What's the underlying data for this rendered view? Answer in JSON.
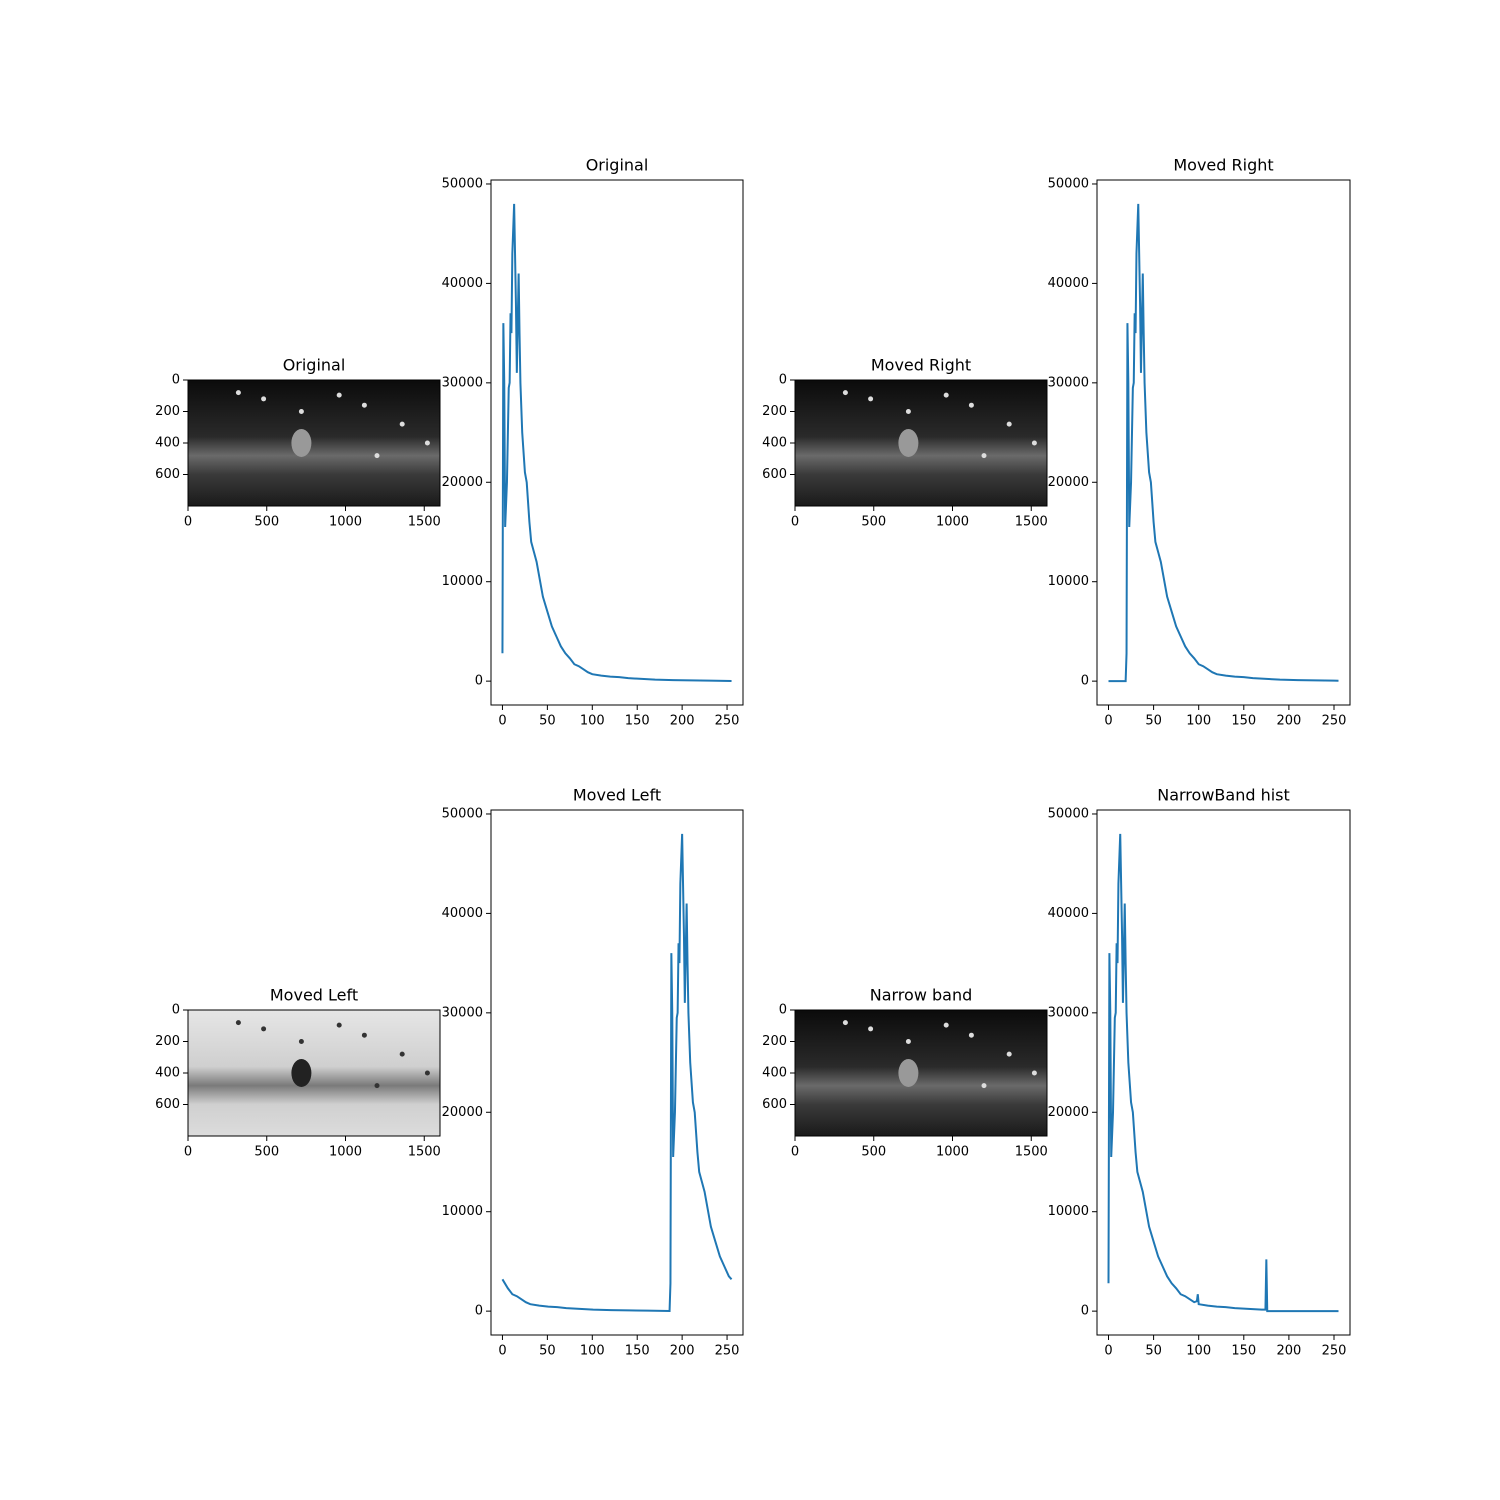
{
  "chart_data": [
    {
      "type": "image",
      "title": "Original",
      "xlim": [
        0,
        1600
      ],
      "ylim": [
        800,
        0
      ],
      "xticks": [
        0,
        500,
        1000,
        1500
      ],
      "yticks": [
        0,
        200,
        400,
        600
      ]
    },
    {
      "type": "line",
      "title": "Original",
      "xlim": [
        -12.75,
        267.75
      ],
      "ylim": [
        -2400,
        50400
      ],
      "xticks": [
        0,
        50,
        100,
        150,
        200,
        250
      ],
      "yticks": [
        0,
        10000,
        20000,
        30000,
        40000,
        50000
      ],
      "x": [
        0,
        1,
        2,
        3,
        5,
        7,
        8,
        9,
        10,
        11,
        13,
        15,
        16,
        18,
        19,
        20,
        22,
        25,
        27,
        30,
        32,
        35,
        38,
        40,
        45,
        50,
        55,
        60,
        65,
        70,
        75,
        80,
        85,
        90,
        95,
        100,
        110,
        120,
        130,
        140,
        150,
        170,
        190,
        210,
        230,
        255
      ],
      "series": [
        {
          "color": "#1f77b4",
          "values": [
            2800,
            36000,
            30000,
            15500,
            20000,
            29500,
            30000,
            37000,
            35000,
            43000,
            48000,
            38000,
            31000,
            41000,
            35000,
            30000,
            25000,
            21000,
            20000,
            16000,
            14000,
            13000,
            12000,
            11000,
            8500,
            7000,
            5500,
            4500,
            3500,
            2800,
            2300,
            1700,
            1500,
            1200,
            900,
            700,
            550,
            450,
            400,
            300,
            250,
            150,
            100,
            80,
            50,
            20
          ]
        }
      ]
    },
    {
      "type": "image",
      "title": "Moved Right",
      "xlim": [
        0,
        1600
      ],
      "ylim": [
        800,
        0
      ],
      "xticks": [
        0,
        500,
        1000,
        1500
      ],
      "yticks": [
        0,
        200,
        400,
        600
      ]
    },
    {
      "type": "line",
      "title": "Moved Right",
      "xlim": [
        -12.75,
        267.75
      ],
      "ylim": [
        -2400,
        50400
      ],
      "xticks": [
        0,
        50,
        100,
        150,
        200,
        250
      ],
      "yticks": [
        0,
        10000,
        20000,
        30000,
        40000,
        50000
      ],
      "x": [
        0,
        19,
        20,
        21,
        22,
        23,
        25,
        27,
        28,
        29,
        30,
        31,
        33,
        35,
        36,
        38,
        39,
        40,
        42,
        45,
        47,
        50,
        52,
        55,
        58,
        60,
        65,
        70,
        75,
        80,
        85,
        90,
        95,
        100,
        105,
        110,
        115,
        120,
        130,
        140,
        150,
        160,
        170,
        190,
        210,
        230,
        250,
        255
      ],
      "series": [
        {
          "color": "#1f77b4",
          "values": [
            0,
            0,
            2800,
            36000,
            30000,
            15500,
            20000,
            29500,
            30000,
            37000,
            35000,
            43000,
            48000,
            38000,
            31000,
            41000,
            35000,
            30000,
            25000,
            21000,
            20000,
            16000,
            14000,
            13000,
            12000,
            11000,
            8500,
            7000,
            5500,
            4500,
            3500,
            2800,
            2300,
            1700,
            1500,
            1200,
            900,
            700,
            550,
            450,
            400,
            300,
            250,
            150,
            100,
            80,
            50,
            40
          ]
        }
      ]
    },
    {
      "type": "image",
      "title": "Moved Left",
      "xlim": [
        0,
        1600
      ],
      "ylim": [
        800,
        0
      ],
      "xticks": [
        0,
        500,
        1000,
        1500
      ],
      "yticks": [
        0,
        200,
        400,
        600
      ]
    },
    {
      "type": "line",
      "title": "Moved Left",
      "xlim": [
        -12.75,
        267.75
      ],
      "ylim": [
        -2400,
        50400
      ],
      "xticks": [
        0,
        50,
        100,
        150,
        200,
        250
      ],
      "yticks": [
        0,
        10000,
        20000,
        30000,
        40000,
        50000
      ],
      "x": [
        0,
        6,
        11,
        16,
        21,
        26,
        31,
        41,
        51,
        61,
        71,
        81,
        101,
        121,
        141,
        161,
        186,
        187,
        188,
        189,
        190,
        192,
        194,
        195,
        196,
        197,
        198,
        200,
        202,
        203,
        205,
        206,
        207,
        209,
        212,
        214,
        217,
        219,
        222,
        225,
        227,
        232,
        237,
        242,
        247,
        252,
        255
      ],
      "series": [
        {
          "color": "#1f77b4",
          "values": [
            3200,
            2300,
            1700,
            1500,
            1200,
            900,
            700,
            550,
            450,
            400,
            300,
            250,
            150,
            100,
            80,
            50,
            20,
            2800,
            36000,
            30000,
            15500,
            20000,
            29500,
            30000,
            37000,
            35000,
            43000,
            48000,
            38000,
            31000,
            41000,
            35000,
            30000,
            25000,
            21000,
            20000,
            16000,
            14000,
            13000,
            12000,
            11000,
            8500,
            7000,
            5500,
            4500,
            3500,
            3200
          ]
        }
      ]
    },
    {
      "type": "image",
      "title": "Narrow band",
      "xlim": [
        0,
        1600
      ],
      "ylim": [
        800,
        0
      ],
      "xticks": [
        0,
        500,
        1000,
        1500
      ],
      "yticks": [
        0,
        200,
        400,
        600
      ]
    },
    {
      "type": "line",
      "title": "NarrowBand hist",
      "xlim": [
        -12.75,
        267.75
      ],
      "ylim": [
        -2400,
        50400
      ],
      "xticks": [
        0,
        50,
        100,
        150,
        200,
        250
      ],
      "yticks": [
        0,
        10000,
        20000,
        30000,
        40000,
        50000
      ],
      "x": [
        0,
        1,
        2,
        3,
        5,
        7,
        8,
        9,
        10,
        11,
        13,
        15,
        16,
        18,
        19,
        20,
        22,
        25,
        27,
        30,
        32,
        35,
        38,
        40,
        45,
        50,
        55,
        60,
        65,
        70,
        75,
        80,
        85,
        90,
        95,
        98,
        99,
        100,
        110,
        120,
        130,
        140,
        150,
        170,
        174,
        175,
        176,
        255
      ],
      "series": [
        {
          "color": "#1f77b4",
          "values": [
            2800,
            36000,
            30000,
            15500,
            20000,
            29500,
            30000,
            37000,
            35000,
            43000,
            48000,
            38000,
            31000,
            41000,
            35000,
            30000,
            25000,
            21000,
            20000,
            16000,
            14000,
            13000,
            12000,
            11000,
            8500,
            7000,
            5500,
            4500,
            3500,
            2800,
            2300,
            1700,
            1500,
            1200,
            900,
            1000,
            1700,
            700,
            550,
            450,
            400,
            300,
            250,
            150,
            150,
            5200,
            0,
            0
          ]
        }
      ]
    }
  ]
}
